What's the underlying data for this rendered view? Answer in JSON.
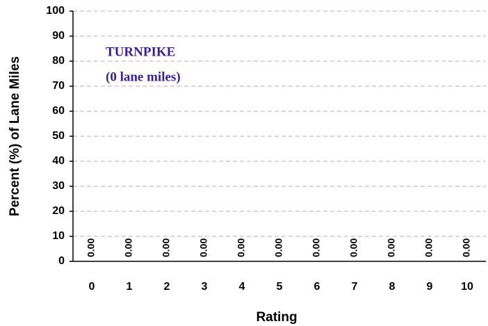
{
  "chart_data": {
    "type": "bar",
    "xlabel": "Rating",
    "ylabel": "Percent (%) of Lane Miles",
    "annotations": [
      "TURNPIKE",
      "(0 lane miles)"
    ],
    "annotation_color": "#3b1e96",
    "categories": [
      "0",
      "1",
      "2",
      "3",
      "4",
      "5",
      "6",
      "7",
      "8",
      "9",
      "10"
    ],
    "values": [
      0,
      0,
      0,
      0,
      0,
      0,
      0,
      0,
      0,
      0,
      0
    ],
    "value_labels": [
      "0.00",
      "0.00",
      "0.00",
      "0.00",
      "0.00",
      "0.00",
      "0.00",
      "0.00",
      "0.00",
      "0.00",
      "0.00"
    ],
    "color": "#000080",
    "ylim": [
      0,
      100
    ],
    "yticks": [
      0,
      10,
      20,
      30,
      40,
      50,
      60,
      70,
      80,
      90,
      100
    ],
    "grid": true
  }
}
